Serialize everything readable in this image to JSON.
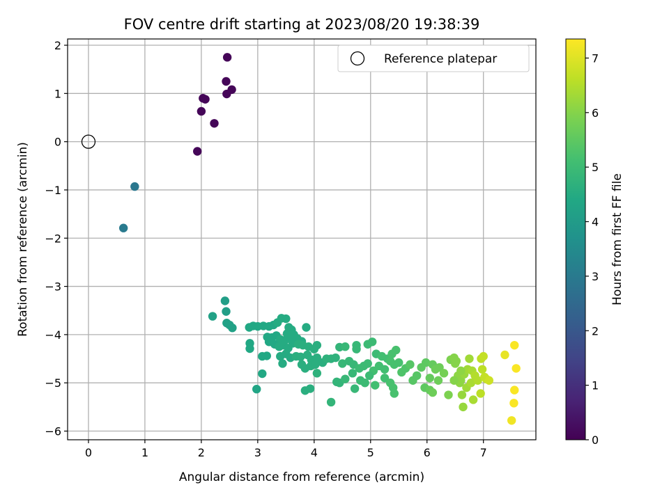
{
  "chart_data": {
    "type": "scatter",
    "title": "FOV centre drift starting at 2023/08/20 19:38:39",
    "xlabel": "Angular distance from reference (arcmin)",
    "ylabel": "Rotation from reference (arcmin)",
    "xlim": [
      -0.37,
      7.93
    ],
    "ylim": [
      -6.18,
      2.13
    ],
    "xticks": [
      0,
      1,
      2,
      3,
      4,
      5,
      6,
      7
    ],
    "yticks": [
      -6,
      -5,
      -4,
      -3,
      -2,
      -1,
      0,
      1,
      2
    ],
    "grid": true,
    "legend": {
      "placement": "top-right",
      "entries": [
        "Reference platepar"
      ]
    },
    "reference_point": {
      "name": "Reference platepar",
      "x": 0,
      "y": 0
    },
    "colorbar": {
      "label": "Hours from first FF file",
      "colormap": "viridis",
      "range": [
        0,
        7.35
      ],
      "ticks": [
        0,
        1,
        2,
        3,
        4,
        5,
        6,
        7
      ]
    },
    "points": [
      [
        2.46,
        1.75,
        0.1
      ],
      [
        2.44,
        1.25,
        0.1
      ],
      [
        2.54,
        1.08,
        0.1
      ],
      [
        2.45,
        0.99,
        0.1
      ],
      [
        2.03,
        0.9,
        0.1
      ],
      [
        2.07,
        0.88,
        0.1
      ],
      [
        2.0,
        0.63,
        0.1
      ],
      [
        2.23,
        0.38,
        0.1
      ],
      [
        1.93,
        -0.2,
        0.1
      ],
      [
        0.82,
        -0.93,
        2.9
      ],
      [
        0.62,
        -1.79,
        3.0
      ],
      [
        2.42,
        -3.3,
        4.1
      ],
      [
        2.44,
        -3.52,
        4.1
      ],
      [
        2.2,
        -3.62,
        4.2
      ],
      [
        2.45,
        -3.76,
        4.2
      ],
      [
        2.5,
        -3.8,
        4.2
      ],
      [
        2.55,
        -3.86,
        4.2
      ],
      [
        2.85,
        -3.85,
        4.4
      ],
      [
        2.92,
        -3.82,
        4.4
      ],
      [
        3.0,
        -3.83,
        4.4
      ],
      [
        3.1,
        -3.82,
        4.4
      ],
      [
        3.2,
        -3.83,
        4.4
      ],
      [
        3.28,
        -3.8,
        4.4
      ],
      [
        3.35,
        -3.75,
        4.5
      ],
      [
        3.42,
        -3.66,
        4.5
      ],
      [
        3.5,
        -3.67,
        4.5
      ],
      [
        3.55,
        -3.85,
        4.5
      ],
      [
        3.6,
        -3.9,
        4.5
      ],
      [
        3.52,
        -3.98,
        4.5
      ],
      [
        3.17,
        -4.05,
        4.4
      ],
      [
        3.25,
        -4.06,
        4.4
      ],
      [
        3.33,
        -4.02,
        4.4
      ],
      [
        3.4,
        -4.1,
        4.5
      ],
      [
        3.48,
        -4.12,
        4.5
      ],
      [
        3.56,
        -4.05,
        4.5
      ],
      [
        3.64,
        -4.0,
        4.5
      ],
      [
        3.7,
        -4.08,
        4.5
      ],
      [
        3.78,
        -4.14,
        4.5
      ],
      [
        3.86,
        -3.85,
        4.5
      ],
      [
        3.2,
        -4.15,
        4.4
      ],
      [
        3.3,
        -4.2,
        4.4
      ],
      [
        3.38,
        -4.25,
        4.5
      ],
      [
        3.46,
        -4.22,
        4.5
      ],
      [
        3.54,
        -4.28,
        4.5
      ],
      [
        3.62,
        -4.18,
        4.5
      ],
      [
        3.72,
        -4.2,
        4.6
      ],
      [
        3.8,
        -4.22,
        4.6
      ],
      [
        3.9,
        -4.25,
        4.6
      ],
      [
        4.05,
        -4.22,
        4.6
      ],
      [
        4.0,
        -4.3,
        4.6
      ],
      [
        2.86,
        -4.18,
        4.4
      ],
      [
        2.86,
        -4.29,
        4.4
      ],
      [
        3.08,
        -4.45,
        4.4
      ],
      [
        3.16,
        -4.44,
        4.4
      ],
      [
        3.4,
        -4.45,
        4.5
      ],
      [
        3.5,
        -4.4,
        4.5
      ],
      [
        3.58,
        -4.48,
        4.5
      ],
      [
        3.68,
        -4.45,
        4.6
      ],
      [
        3.76,
        -4.46,
        4.6
      ],
      [
        3.88,
        -4.42,
        4.6
      ],
      [
        3.95,
        -4.52,
        4.6
      ],
      [
        4.05,
        -4.48,
        4.6
      ],
      [
        4.15,
        -4.58,
        4.6
      ],
      [
        4.22,
        -4.5,
        4.7
      ],
      [
        4.3,
        -4.5,
        4.7
      ],
      [
        4.38,
        -4.48,
        4.7
      ],
      [
        3.44,
        -4.6,
        4.5
      ],
      [
        3.78,
        -4.62,
        4.6
      ],
      [
        3.84,
        -4.7,
        4.6
      ],
      [
        3.94,
        -4.65,
        4.6
      ],
      [
        4.02,
        -4.62,
        4.6
      ],
      [
        4.05,
        -4.8,
        4.7
      ],
      [
        3.08,
        -4.81,
        4.4
      ],
      [
        2.98,
        -5.13,
        4.3
      ],
      [
        3.84,
        -5.16,
        4.6
      ],
      [
        3.93,
        -5.12,
        4.6
      ],
      [
        4.3,
        -5.4,
        4.8
      ],
      [
        4.45,
        -4.26,
        4.8
      ],
      [
        4.55,
        -4.25,
        4.9
      ],
      [
        4.75,
        -4.22,
        4.9
      ],
      [
        4.75,
        -4.3,
        4.9
      ],
      [
        4.95,
        -4.2,
        5.0
      ],
      [
        5.03,
        -4.15,
        5.0
      ],
      [
        5.1,
        -4.4,
        5.0
      ],
      [
        5.2,
        -4.45,
        5.1
      ],
      [
        5.3,
        -4.5,
        5.1
      ],
      [
        5.38,
        -4.4,
        5.2
      ],
      [
        5.45,
        -4.32,
        5.2
      ],
      [
        5.5,
        -4.58,
        5.2
      ],
      [
        4.5,
        -4.6,
        4.9
      ],
      [
        4.62,
        -4.55,
        4.9
      ],
      [
        4.7,
        -4.62,
        4.9
      ],
      [
        4.8,
        -4.7,
        5.0
      ],
      [
        4.88,
        -4.65,
        5.0
      ],
      [
        4.95,
        -4.6,
        5.0
      ],
      [
        5.05,
        -4.75,
        5.1
      ],
      [
        5.15,
        -4.65,
        5.1
      ],
      [
        5.25,
        -4.72,
        5.1
      ],
      [
        5.35,
        -4.55,
        5.2
      ],
      [
        5.42,
        -4.62,
        5.2
      ],
      [
        4.4,
        -4.98,
        4.8
      ],
      [
        4.45,
        -5.0,
        4.8
      ],
      [
        4.55,
        -4.92,
        4.9
      ],
      [
        4.68,
        -4.8,
        4.9
      ],
      [
        4.72,
        -5.12,
        4.9
      ],
      [
        4.82,
        -4.95,
        5.0
      ],
      [
        4.9,
        -5.0,
        5.0
      ],
      [
        4.98,
        -4.85,
        5.0
      ],
      [
        5.08,
        -5.05,
        5.1
      ],
      [
        5.25,
        -4.9,
        5.1
      ],
      [
        5.35,
        -5.0,
        5.2
      ],
      [
        5.4,
        -5.1,
        5.2
      ],
      [
        5.42,
        -5.22,
        5.2
      ],
      [
        5.55,
        -4.78,
        5.3
      ],
      [
        5.62,
        -4.7,
        5.3
      ],
      [
        5.7,
        -4.62,
        5.4
      ],
      [
        5.75,
        -4.95,
        5.4
      ],
      [
        5.82,
        -4.85,
        5.4
      ],
      [
        5.9,
        -4.68,
        5.5
      ],
      [
        5.98,
        -4.58,
        5.5
      ],
      [
        5.96,
        -5.1,
        5.5
      ],
      [
        6.05,
        -5.15,
        5.6
      ],
      [
        6.05,
        -4.9,
        5.6
      ],
      [
        6.1,
        -4.62,
        5.6
      ],
      [
        6.15,
        -4.72,
        5.7
      ],
      [
        6.2,
        -4.95,
        5.7
      ],
      [
        6.22,
        -4.68,
        5.7
      ],
      [
        6.1,
        -5.2,
        5.7
      ],
      [
        6.3,
        -4.8,
        5.8
      ],
      [
        6.38,
        -5.25,
        5.9
      ],
      [
        6.42,
        -4.52,
        5.9
      ],
      [
        6.48,
        -4.48,
        6.0
      ],
      [
        6.5,
        -4.6,
        6.0
      ],
      [
        6.55,
        -4.85,
        6.1
      ],
      [
        6.58,
        -5.0,
        6.1
      ],
      [
        6.6,
        -4.95,
        6.1
      ],
      [
        6.62,
        -5.25,
        6.2
      ],
      [
        6.64,
        -5.5,
        6.2
      ],
      [
        6.66,
        -4.82,
        6.2
      ],
      [
        6.7,
        -5.1,
        6.3
      ],
      [
        6.72,
        -4.72,
        6.3
      ],
      [
        6.75,
        -4.5,
        6.3
      ],
      [
        6.78,
        -5.0,
        6.4
      ],
      [
        6.8,
        -4.75,
        6.4
      ],
      [
        6.82,
        -5.35,
        6.4
      ],
      [
        6.85,
        -4.85,
        6.5
      ],
      [
        6.9,
        -4.95,
        6.5
      ],
      [
        6.95,
        -5.22,
        6.6
      ],
      [
        6.96,
        -4.5,
        6.6
      ],
      [
        6.98,
        -4.72,
        6.6
      ],
      [
        7.0,
        -4.45,
        6.7
      ],
      [
        7.02,
        -4.88,
        6.7
      ],
      [
        7.05,
        -4.92,
        6.7
      ],
      [
        7.1,
        -4.95,
        6.8
      ],
      [
        6.48,
        -4.95,
        6.0
      ],
      [
        6.6,
        -4.75,
        6.1
      ],
      [
        6.52,
        -4.55,
        6.0
      ],
      [
        7.38,
        -4.42,
        7.1
      ],
      [
        7.5,
        -5.78,
        7.2
      ],
      [
        7.55,
        -4.22,
        7.3
      ],
      [
        7.58,
        -4.7,
        7.3
      ],
      [
        7.55,
        -5.15,
        7.3
      ],
      [
        7.54,
        -5.42,
        7.3
      ]
    ]
  }
}
